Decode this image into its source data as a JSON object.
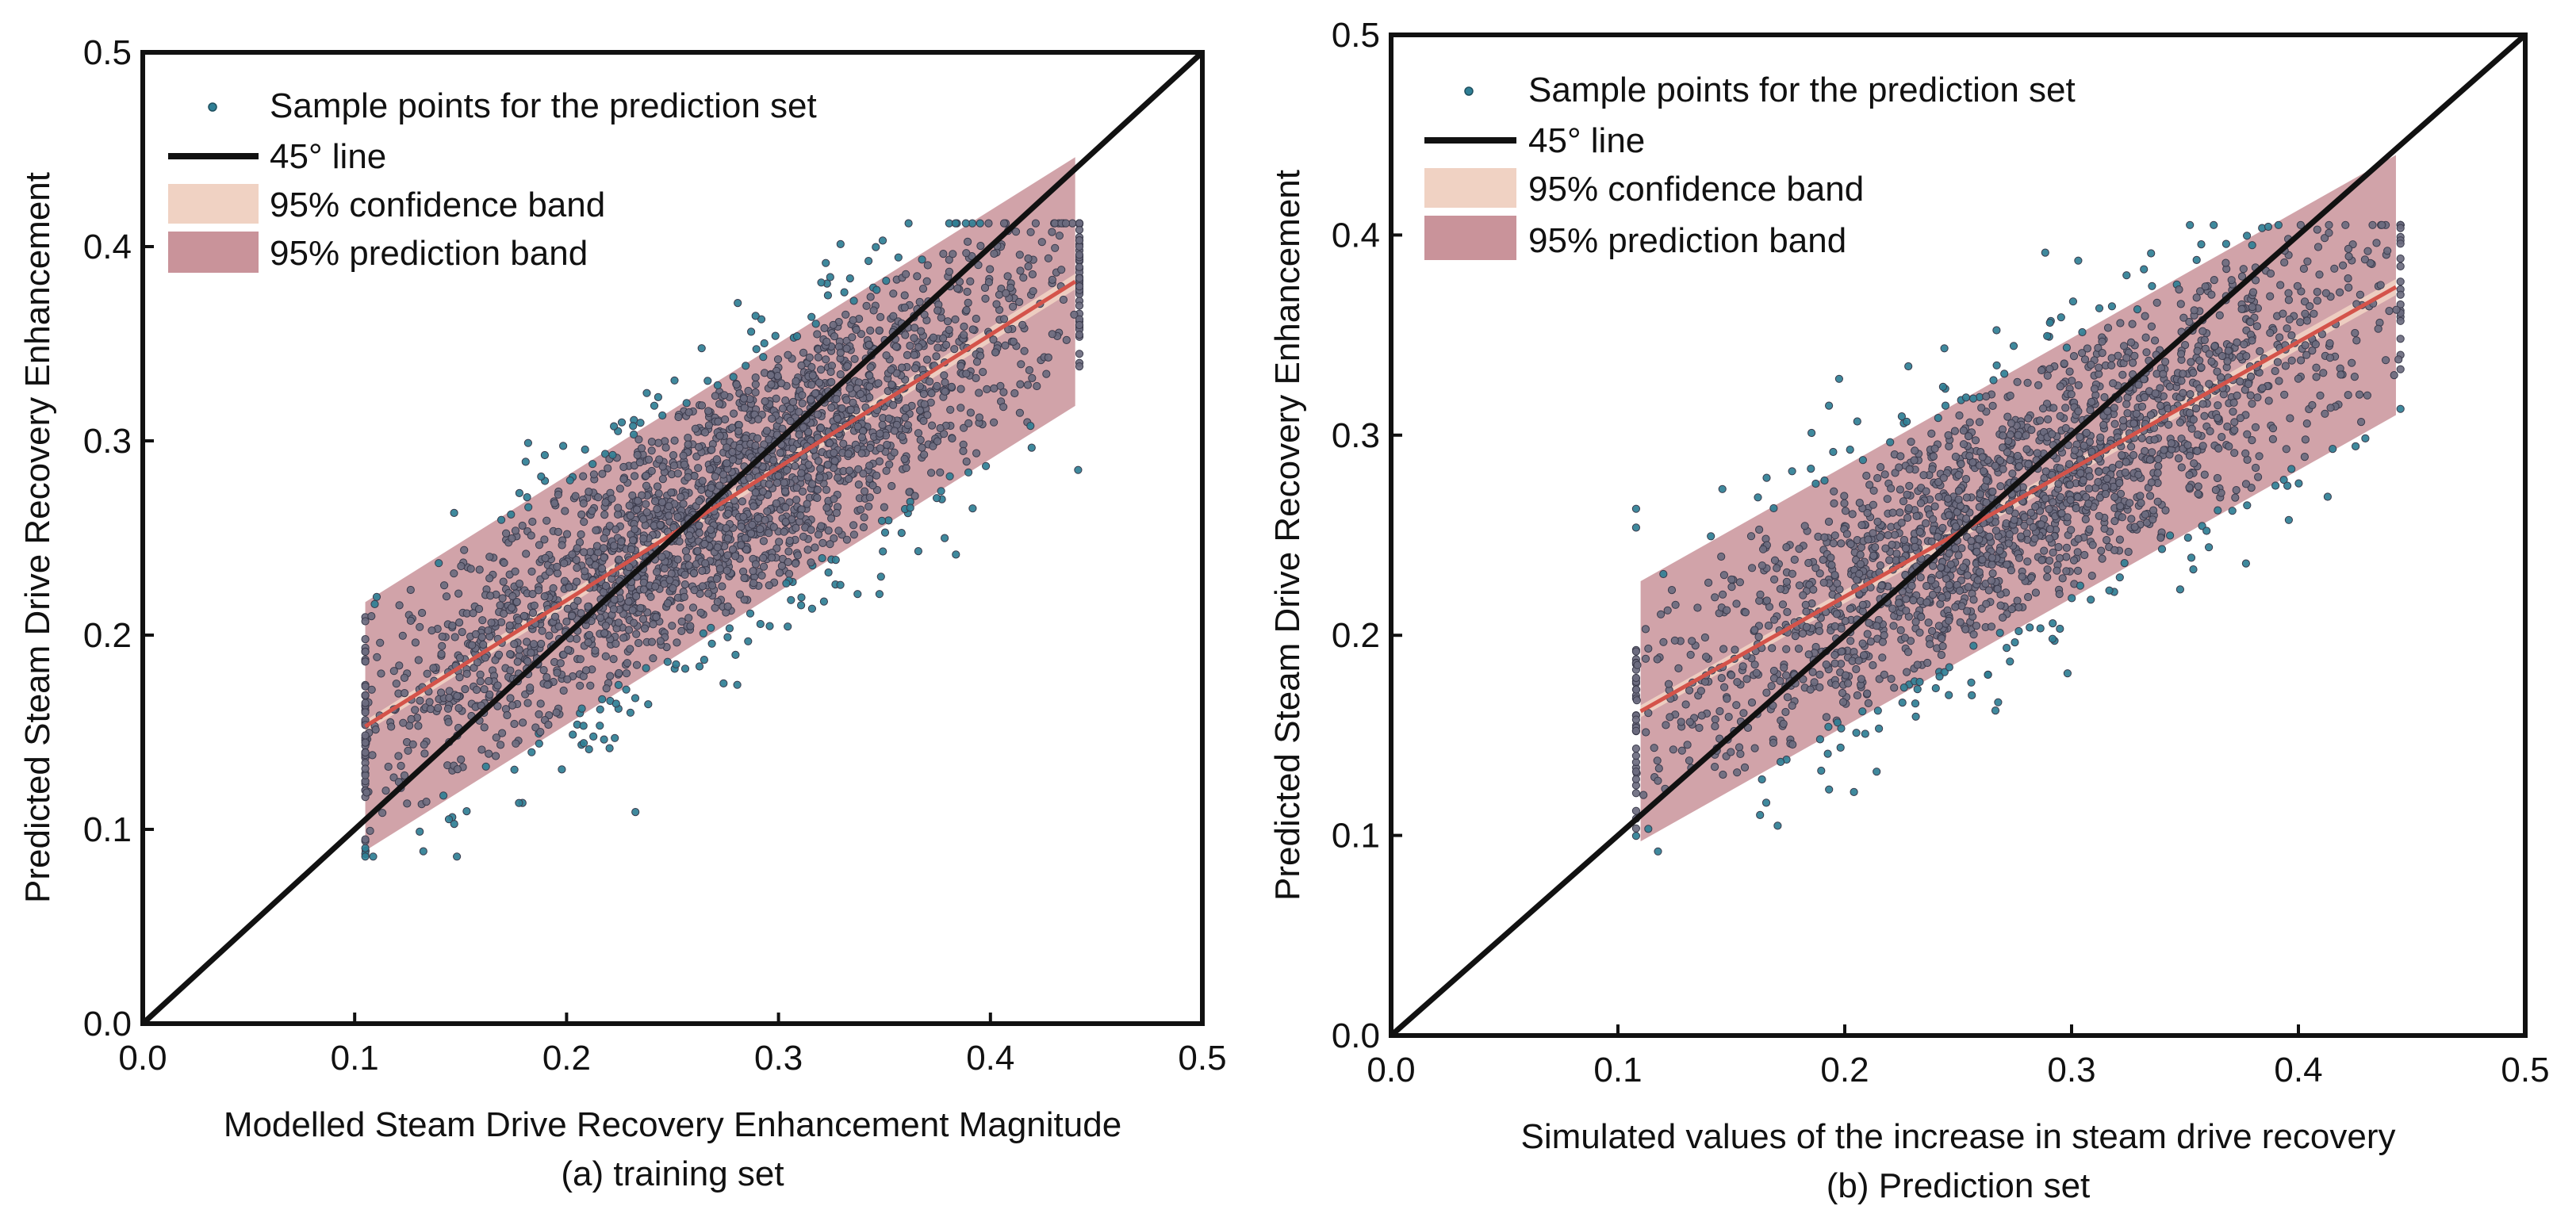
{
  "chart_data": [
    {
      "type": "scatter",
      "id": "training",
      "caption": "(a) training set",
      "xlabel": "Modelled Steam Drive Recovery Enhancement Magnitude",
      "ylabel": "Predicted Steam Drive Recovery Enhancement",
      "xlim": [
        0.0,
        0.5
      ],
      "ylim": [
        0.0,
        0.5
      ],
      "xticks": [
        "0.0",
        "0.1",
        "0.2",
        "0.3",
        "0.4",
        "0.5"
      ],
      "yticks": [
        "0.0",
        "0.1",
        "0.2",
        "0.3",
        "0.4",
        "0.5"
      ],
      "grid": false,
      "legend_position": "top-left",
      "legend": {
        "samples": "Sample points for the prediction set",
        "line45": "45° line",
        "confidence": "95% confidence band",
        "prediction": "95% prediction band"
      },
      "scatter_x_range": [
        0.105,
        0.442
      ],
      "scatter_y_range": [
        0.086,
        0.412
      ],
      "approx_point_count": 2600,
      "fit_line": {
        "x": [
          0.105,
          0.44
        ],
        "y": [
          0.153,
          0.382
        ]
      },
      "prediction_band": {
        "x": [
          0.105,
          0.44
        ],
        "lower": [
          0.089,
          0.318
        ],
        "upper": [
          0.217,
          0.446
        ]
      },
      "confidence_band": {
        "x": [
          0.105,
          0.44
        ],
        "lower": [
          0.15,
          0.378
        ],
        "upper": [
          0.156,
          0.386
        ]
      },
      "line45": {
        "x": [
          0.0,
          0.5
        ],
        "y": [
          0.0,
          0.5
        ]
      }
    },
    {
      "type": "scatter",
      "id": "prediction",
      "caption": "(b) Prediction set",
      "xlabel": "Simulated values of the increase in steam drive recovery",
      "ylabel": "Predicted Steam Drive Recovery Enhancement",
      "xlim": [
        0.0,
        0.5
      ],
      "ylim": [
        0.0,
        0.5
      ],
      "xticks": [
        "0.0",
        "0.1",
        "0.2",
        "0.3",
        "0.4",
        "0.5"
      ],
      "yticks": [
        "0.0",
        "0.1",
        "0.2",
        "0.3",
        "0.4",
        "0.5"
      ],
      "grid": false,
      "legend_position": "top-left",
      "legend": {
        "samples": "Sample points for the prediction set",
        "line45": "45° line",
        "confidence": "95% confidence band",
        "prediction": "95% prediction band"
      },
      "scatter_x_range": [
        0.108,
        0.445
      ],
      "scatter_y_range": [
        0.092,
        0.405
      ],
      "approx_point_count": 2200,
      "fit_line": {
        "x": [
          0.11,
          0.443
        ],
        "y": [
          0.162,
          0.374
        ]
      },
      "prediction_band": {
        "x": [
          0.11,
          0.443
        ],
        "lower": [
          0.097,
          0.31
        ],
        "upper": [
          0.227,
          0.44
        ]
      },
      "confidence_band": {
        "x": [
          0.11,
          0.443
        ],
        "lower": [
          0.159,
          0.37
        ],
        "upper": [
          0.165,
          0.378
        ]
      },
      "line45": {
        "x": [
          0.0,
          0.5
        ],
        "y": [
          0.0,
          0.5
        ]
      }
    }
  ],
  "colors": {
    "axis": "#111111",
    "line45": "#111111",
    "fit_line": "#d4534a",
    "prediction_band": "#c9939a",
    "confidence_band": "#f0d2c3",
    "point_fill": "#6b6b7f",
    "point_stroke": "#3b3b4c",
    "outlier_fill": "#2f7f95"
  }
}
